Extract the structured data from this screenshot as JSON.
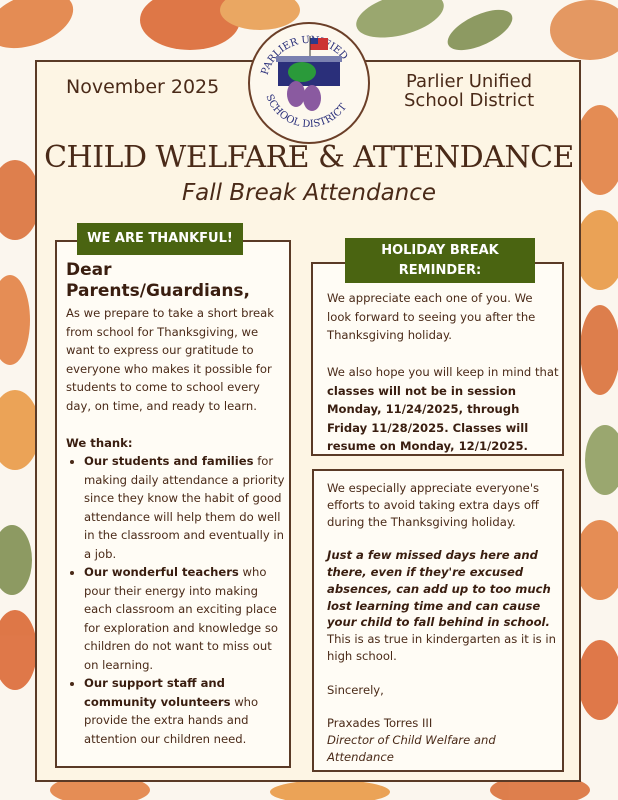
{
  "header": {
    "date": "November 2025",
    "district": [
      "Parlier Unified",
      "School District"
    ],
    "logo_text": "PARLIER UNIFIED SCHOOL DISTRICT",
    "title": "CHILD WELFARE & ATTENDANCE",
    "subtitle": "Fall Break Attendance"
  },
  "left": {
    "tab": "WE ARE THANKFUL!",
    "greeting": "Dear Parents/Guardians,",
    "intro": "As we prepare to take a short break from school for Thanksgiving, we want to express our gratitude to everyone who makes it possible for students to come to school every day, on time, and ready to learn.",
    "we_thank": "We thank:",
    "items": [
      {
        "bold": "Our students and families",
        "text": " for making daily attendance a priority since they know the habit of good attendance will help them do well in the classroom and eventually in a job."
      },
      {
        "bold": "Our wonderful teachers",
        "text": " who pour their energy into making each classroom an exciting place for exploration and knowledge so children do not want to miss out on learning."
      },
      {
        "bold": "Our support staff and community volunteers",
        "text": " who provide the extra hands and attention our children need."
      }
    ]
  },
  "reminder": {
    "tab": "HOLIDAY BREAK REMINDER:",
    "p1": "We appreciate each one of you. We look forward to seeing you after the Thanksgiving holiday.",
    "p2_lead": "We also hope you will keep in mind that ",
    "p2_bold": "classes will not be in session Monday, 11/24/2025, through Friday 11/28/2025. Classes will resume on Monday, 12/1/2025."
  },
  "closing": {
    "p1": "We especially appreciate everyone's efforts to avoid taking extra days off during the Thanksgiving holiday.",
    "emphasis": "Just a few missed days here and there, even if they're excused absences, can add up to too much lost learning time and can cause your child to fall behind in school.",
    "p2_rest": " This is as true in kindergarten as it is in high school.",
    "signoff": "Sincerely,",
    "name": "Praxades Torres III",
    "role": "Director of Child Welfare and Attendance"
  },
  "colors": {
    "accent_green": "#4a6411",
    "brown": "#5a3a26",
    "cream": "#fdf5e4"
  }
}
